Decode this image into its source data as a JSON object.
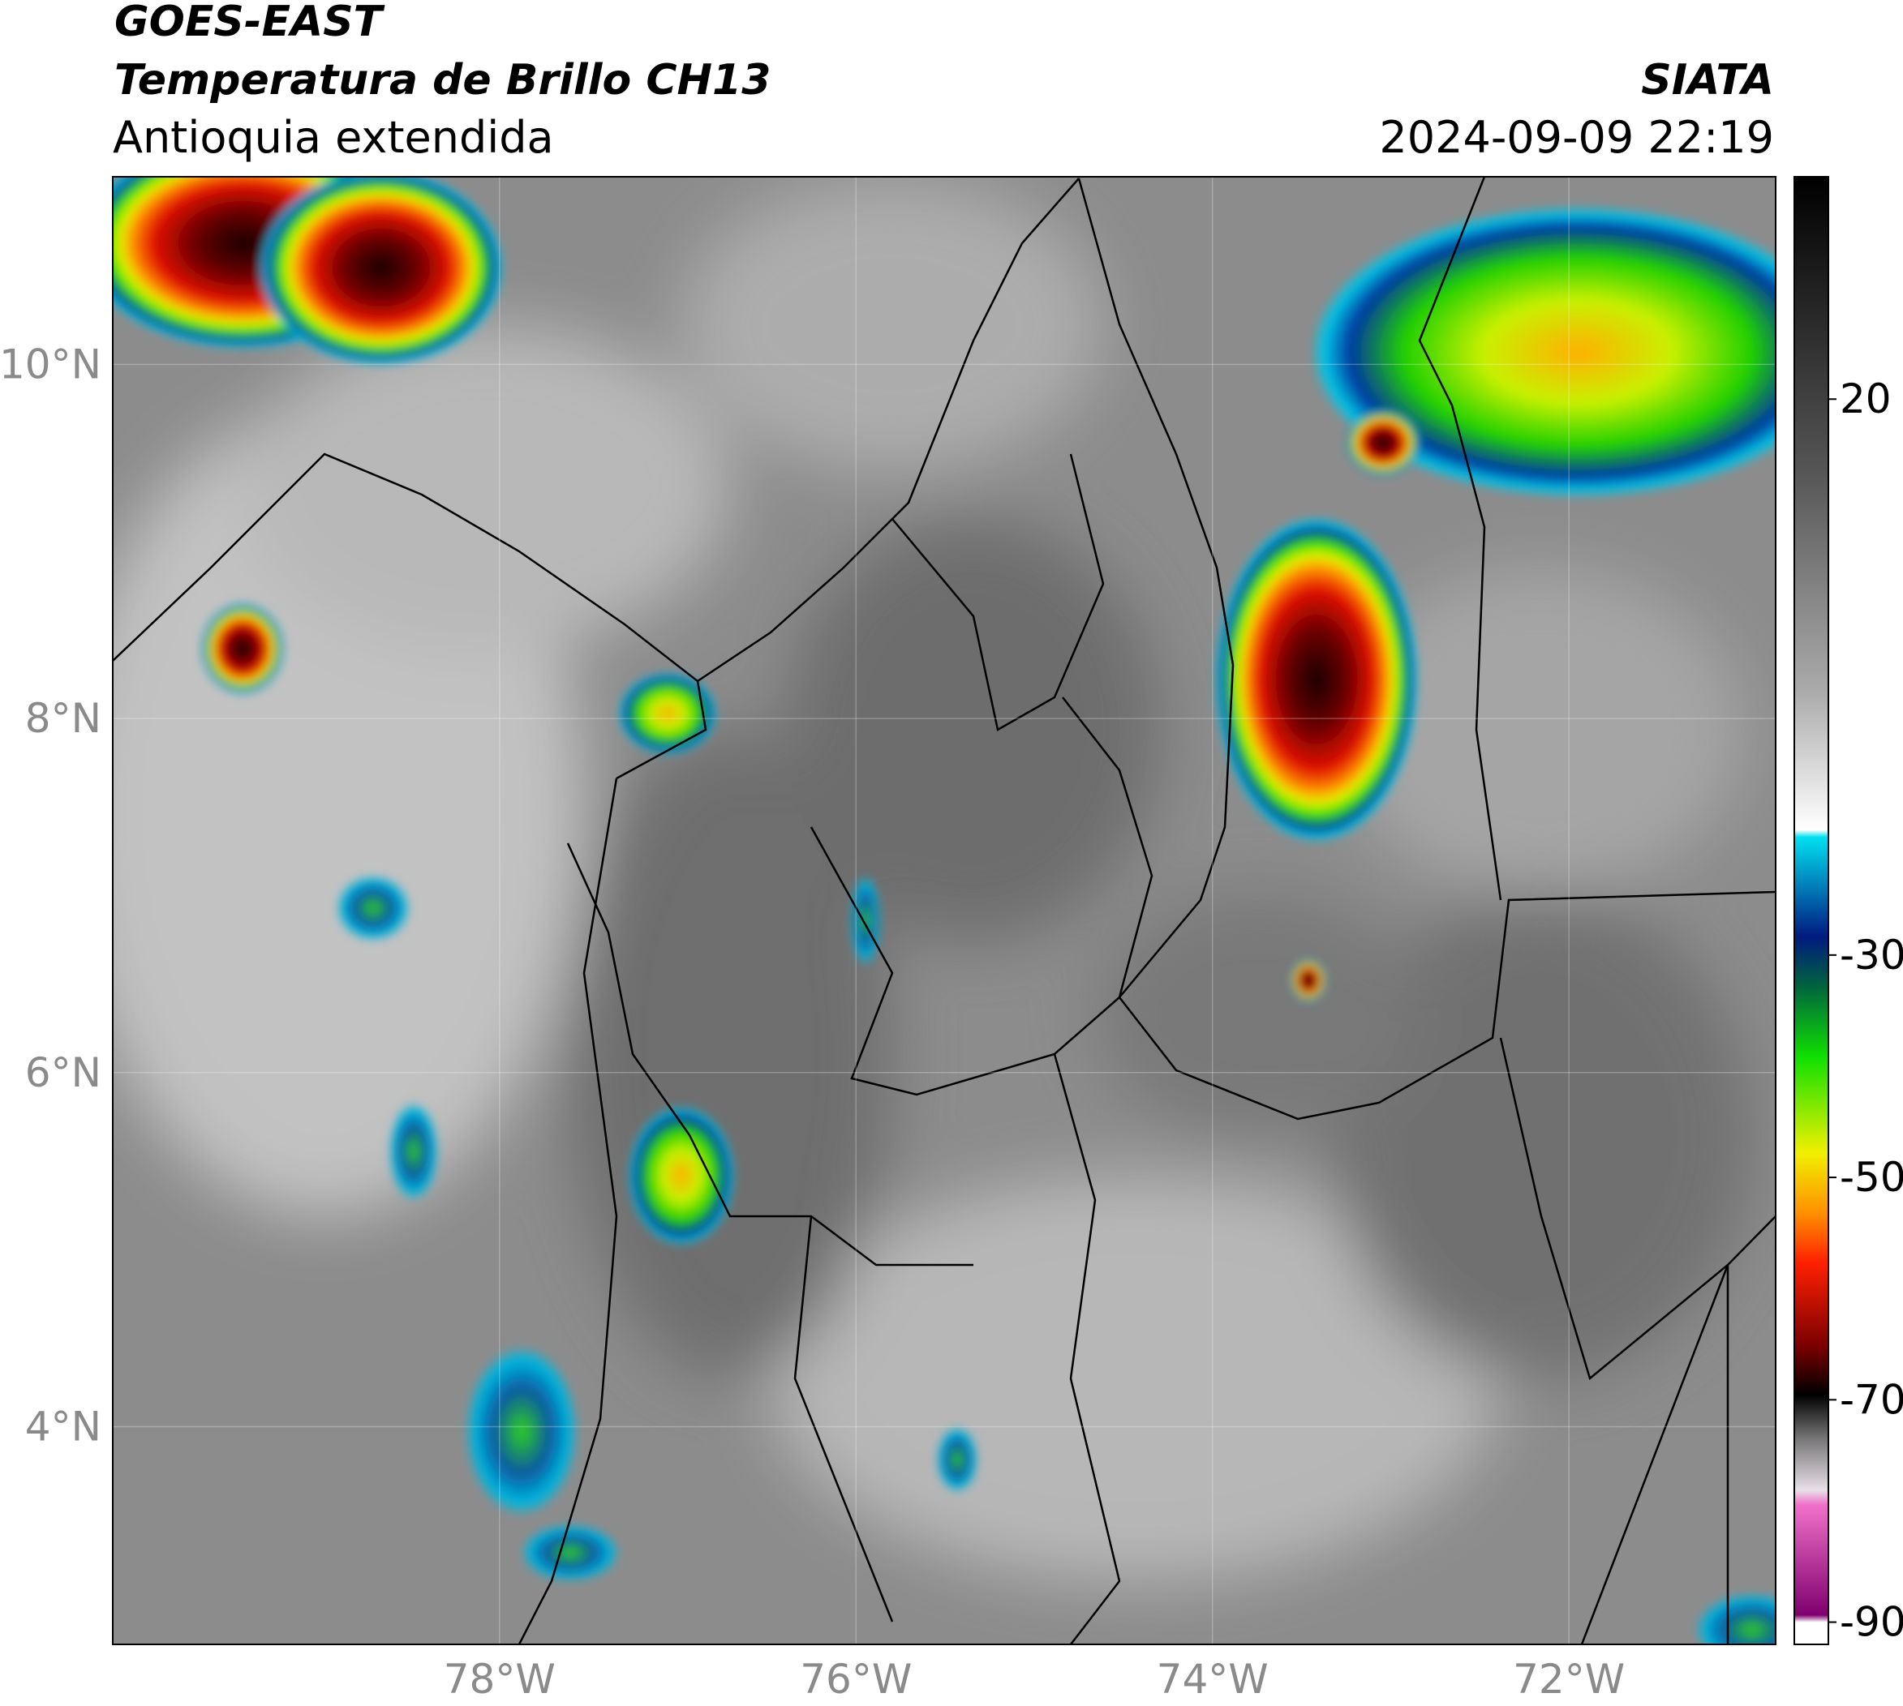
{
  "header": {
    "title": "GOES-EAST",
    "subtitle": "Temperatura de Brillo CH13",
    "region": "Antioquia extendida",
    "source": "SIATA",
    "datetime": "2024-09-09 22:19"
  },
  "map": {
    "latlim": [
      2.77,
      11.06
    ],
    "lonlim": [
      -80.17,
      -70.84
    ],
    "lat_ticks": [
      {
        "value": 10,
        "label": "10°N"
      },
      {
        "value": 8,
        "label": "8°N"
      },
      {
        "value": 6,
        "label": "6°N"
      },
      {
        "value": 4,
        "label": "4°N"
      }
    ],
    "lon_ticks": [
      {
        "value": -78,
        "label": "78°W"
      },
      {
        "value": -76,
        "label": "76°W"
      },
      {
        "value": -74,
        "label": "74°W"
      },
      {
        "value": -72,
        "label": "72°W"
      }
    ]
  },
  "colorbar": {
    "lim": [
      -92,
      40
    ],
    "ticks": [
      20,
      -30,
      -50,
      -70,
      -90
    ]
  }
}
